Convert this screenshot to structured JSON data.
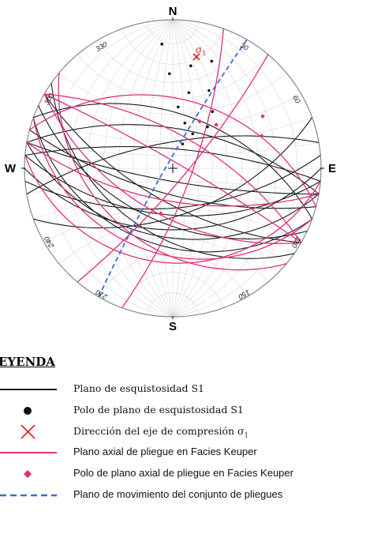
{
  "stereonet": {
    "cardinals": {
      "north": "N",
      "south": "S",
      "east": "E",
      "west": "W"
    },
    "azimuth_labels": [
      "30",
      "60",
      "120",
      "150",
      "210",
      "240",
      "300",
      "330"
    ],
    "sigma_label": "σ",
    "sigma_subscript": "1",
    "colors": {
      "schistosity": "#1a1a1a",
      "axial_plane": "#e0307a",
      "sigma": "#e02020",
      "movement_plane": "#3a6fd0",
      "grid": "#d8d8d8"
    }
  },
  "legend": {
    "title": "EYENDA",
    "items": [
      {
        "symbol": "black-line",
        "label": "Plano de esquistosidad S1"
      },
      {
        "symbol": "black-dot",
        "label": "Polo de plano de esquistosidad S1"
      },
      {
        "symbol": "red-cross",
        "label": "Dirección del eje de compresión σ",
        "subscript": "1"
      },
      {
        "symbol": "pink-line",
        "label": "Plano axial de pliegue en Facies Keuper"
      },
      {
        "symbol": "pink-diamond",
        "label": "Polo de plano axial de pliegue en Facies Keuper"
      },
      {
        "symbol": "blue-dashed",
        "label": "Plano de movimiento del conjunto de pliegues"
      }
    ]
  }
}
